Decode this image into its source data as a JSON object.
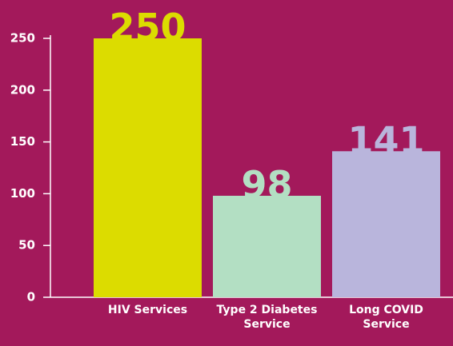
{
  "chart_data": {
    "type": "bar",
    "categories": [
      "HIV Services",
      "Type 2 Diabetes Service",
      "Long COVID Service"
    ],
    "values": [
      250,
      98,
      141
    ],
    "colors": [
      "#dcdc00",
      "#b3dfc3",
      "#b9b5dc"
    ],
    "ylim": [
      0,
      250
    ],
    "yticks": [
      0,
      50,
      100,
      150,
      200,
      250
    ],
    "grid": false
  }
}
